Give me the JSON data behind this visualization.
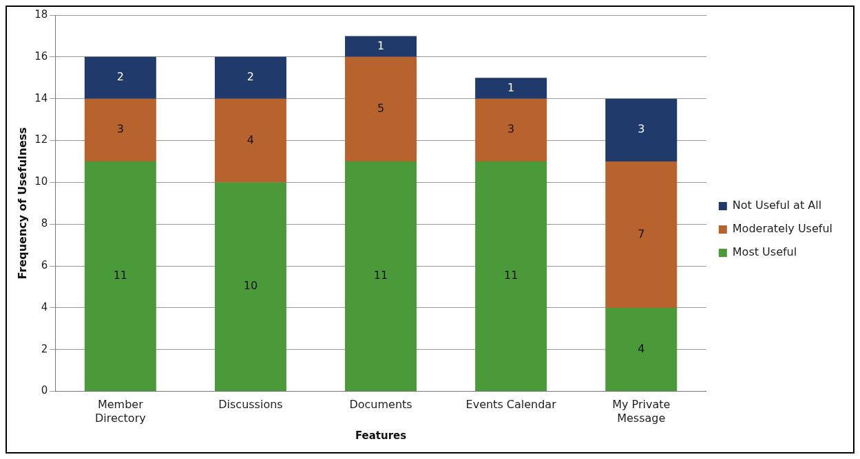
{
  "chart_data": {
    "type": "bar",
    "stacked": true,
    "xlabel": "Features",
    "ylabel": "Frequency of Usefulness",
    "categories": [
      "Member Directory",
      "Discussions",
      "Documents",
      "Events Calendar",
      "My Private Message"
    ],
    "series": [
      {
        "name": "Most Useful",
        "color": "#4a9a3a",
        "values": [
          11,
          10,
          11,
          11,
          4
        ]
      },
      {
        "name": "Moderately Useful",
        "color": "#b8622e",
        "values": [
          3,
          4,
          5,
          3,
          7
        ]
      },
      {
        "name": "Not Useful at All",
        "color": "#1f3a6b",
        "values": [
          2,
          2,
          1,
          1,
          3
        ]
      }
    ],
    "ylim": [
      0,
      18
    ],
    "yticks": [
      0,
      2,
      4,
      6,
      8,
      10,
      12,
      14,
      16,
      18
    ],
    "grid": "y",
    "legend": "right",
    "data_labels": true
  }
}
